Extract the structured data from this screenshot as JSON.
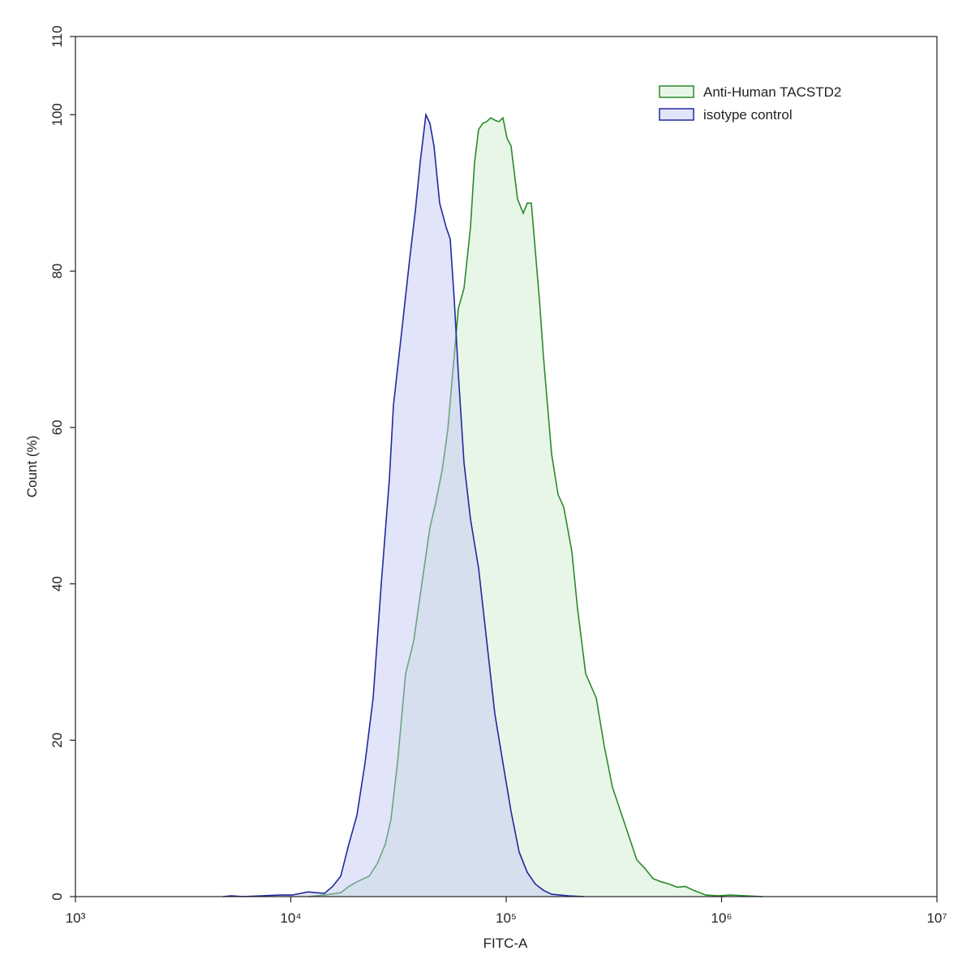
{
  "chart_data": {
    "type": "histogram-overlay",
    "xlabel": "FITC-A",
    "ylabel": "Count (%)",
    "xscale": "log",
    "xlim": [
      1000,
      10000000
    ],
    "ylim": [
      0,
      110
    ],
    "xticks": [
      {
        "value": 1000,
        "label": "10³"
      },
      {
        "value": 10000,
        "label": "10⁴"
      },
      {
        "value": 100000,
        "label": "10⁵"
      },
      {
        "value": 1000000,
        "label": "10⁶"
      },
      {
        "value": 10000000,
        "label": "10⁷"
      }
    ],
    "yticks": [
      0,
      20,
      40,
      60,
      80,
      100,
      110
    ],
    "legend": "upper right",
    "series": [
      {
        "name": "Anti-Human TACSTD2",
        "color": "#2a8a2a",
        "fill": "rgba(190,230,190,0.35)",
        "x": [
          12050,
          14330,
          17040,
          18590,
          20280,
          23090,
          25190,
          27470,
          29190,
          31290,
          34120,
          37200,
          40580,
          44260,
          47010,
          50390,
          53560,
          56420,
          59970,
          63700,
          68290,
          71310,
          74460,
          77770,
          81210,
          84810,
          88580,
          92500,
          96590,
          100900,
          105300,
          112900,
          120000,
          125300,
          130900,
          136600,
          142700,
          149000,
          162500,
          174200,
          185100,
          201900,
          214500,
          233900,
          261900,
          285600,
          311500,
          339800,
          370500,
          404100,
          440700,
          480600,
          524200,
          571600,
          623300,
          679800,
          741400,
          844700,
          962300,
          1096000,
          1303000,
          1550000
        ],
        "values": [
          0,
          0.2,
          0.5,
          1.3,
          1.9,
          2.6,
          4.2,
          6.7,
          9.9,
          17.1,
          28.5,
          32.7,
          40.0,
          47.2,
          50.3,
          54.5,
          59.7,
          66.9,
          75.2,
          77.8,
          85.6,
          93.9,
          98.1,
          98.9,
          99.1,
          99.6,
          99.3,
          99.1,
          99.6,
          97.0,
          96.0,
          89.2,
          87.4,
          88.7,
          88.7,
          82.5,
          76.3,
          69.0,
          56.6,
          51.4,
          49.8,
          44.1,
          36.8,
          28.5,
          25.4,
          19.2,
          14.0,
          10.9,
          7.8,
          4.7,
          3.6,
          2.3,
          1.9,
          1.6,
          1.2,
          1.3,
          0.8,
          0.2,
          0.1,
          0.2,
          0.1,
          0
        ]
      },
      {
        "name": "isotype control",
        "color": "#1f2a9c",
        "fill": "rgba(190,195,245,0.45)",
        "x": [
          4850,
          5285,
          6020,
          8900,
          10130,
          12050,
          13140,
          14330,
          15630,
          17040,
          18590,
          20280,
          22110,
          24120,
          26300,
          28680,
          29960,
          32670,
          35630,
          37860,
          39870,
          42370,
          44260,
          46220,
          49100,
          52640,
          54970,
          57410,
          59970,
          63700,
          68290,
          74460,
          81210,
          88580,
          96590,
          105300,
          114900,
          125300,
          136600,
          149000,
          162500,
          193400,
          229900
        ],
        "values": [
          0,
          0.1,
          0,
          0.2,
          0.2,
          0.6,
          0.5,
          0.4,
          1.3,
          2.6,
          6.7,
          10.4,
          17.1,
          25.4,
          40.0,
          53.4,
          62.8,
          72.1,
          81.5,
          87.7,
          93.9,
          100,
          98.9,
          96.0,
          88.7,
          85.6,
          84.1,
          76.3,
          66.9,
          55.5,
          48.3,
          42.0,
          32.7,
          23.4,
          17.1,
          10.9,
          5.7,
          3.1,
          1.6,
          0.8,
          0.3,
          0.1,
          0
        ]
      }
    ]
  }
}
